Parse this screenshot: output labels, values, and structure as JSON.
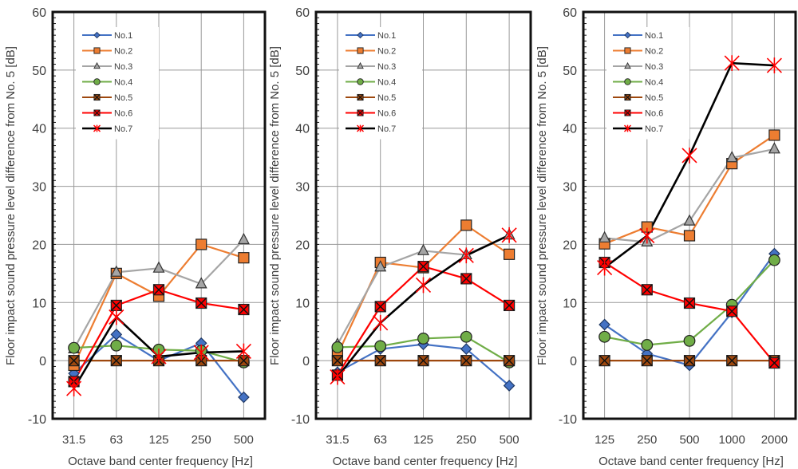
{
  "chart_data": [
    {
      "type": "line",
      "title": "",
      "xlabel": "Octave band center frequency [Hz]",
      "ylabel": "Floor impact sound pressure level difference from No. 5 [dB]",
      "ylim": [
        -10,
        60
      ],
      "yticks": [
        "60",
        "50",
        "40",
        "30",
        "20",
        "10",
        "0",
        "-10"
      ],
      "ytick_values": [
        60,
        50,
        40,
        30,
        20,
        10,
        0,
        -10
      ],
      "categories": [
        "31.5",
        "63",
        "125",
        "250",
        "500"
      ],
      "grid": true,
      "legend_position": "top-left",
      "series": [
        {
          "name": "No.1",
          "values": [
            -2.2,
            4.5,
            0.0,
            3.0,
            -6.3
          ]
        },
        {
          "name": "No.2",
          "values": [
            -0.8,
            15.0,
            11.1,
            20.0,
            17.7
          ]
        },
        {
          "name": "No.3",
          "values": [
            2.0,
            15.2,
            15.9,
            13.2,
            20.8
          ]
        },
        {
          "name": "No.4",
          "values": [
            2.2,
            2.6,
            1.9,
            1.7,
            -0.3
          ]
        },
        {
          "name": "No.5",
          "values": [
            0,
            0,
            0,
            0,
            0
          ]
        },
        {
          "name": "No.6",
          "values": [
            -3.6,
            9.5,
            12.2,
            9.9,
            8.8
          ]
        },
        {
          "name": "No.7",
          "values": [
            -4.8,
            7.5,
            0.7,
            1.4,
            1.6
          ]
        }
      ]
    },
    {
      "type": "line",
      "title": "",
      "xlabel": "Octave band center frequency [Hz]",
      "ylabel": "Floor impact sound pressure level difference from No. 5 [dB]",
      "ylim": [
        -10,
        60
      ],
      "yticks": [
        "60",
        "50",
        "40",
        "30",
        "20",
        "10",
        "0",
        "-10"
      ],
      "ytick_values": [
        60,
        50,
        40,
        30,
        20,
        10,
        0,
        -10
      ],
      "categories": [
        "31.5",
        "63",
        "125",
        "250",
        "500"
      ],
      "grid": true,
      "legend_position": "top-left",
      "series": [
        {
          "name": "No.1",
          "values": [
            -2.0,
            2.0,
            2.8,
            2.0,
            -4.3
          ]
        },
        {
          "name": "No.2",
          "values": [
            1.0,
            16.9,
            16.0,
            23.3,
            18.3
          ]
        },
        {
          "name": "No.3",
          "values": [
            2.8,
            16.1,
            18.9,
            18.2,
            21.6
          ]
        },
        {
          "name": "No.4",
          "values": [
            2.3,
            2.5,
            3.8,
            4.1,
            -0.3
          ]
        },
        {
          "name": "No.5",
          "values": [
            0,
            0,
            0,
            0,
            0
          ]
        },
        {
          "name": "No.6",
          "values": [
            -2.5,
            9.3,
            16.2,
            14.1,
            9.5
          ]
        },
        {
          "name": "No.7",
          "values": [
            -2.8,
            6.5,
            13.0,
            18.1,
            21.6
          ]
        }
      ]
    },
    {
      "type": "line",
      "title": "",
      "xlabel": "Octave band center frequency [Hz]",
      "ylabel": "Floor impact sound pressure level difference from No. 5 [dB]",
      "ylim": [
        -10,
        60
      ],
      "yticks": [
        "60",
        "50",
        "40",
        "30",
        "20",
        "10",
        "0",
        "-10"
      ],
      "ytick_values": [
        60,
        50,
        40,
        30,
        20,
        10,
        0,
        -10
      ],
      "categories": [
        "125",
        "250",
        "500",
        "1000",
        "2000"
      ],
      "grid": true,
      "legend_position": "top-left",
      "series": [
        {
          "name": "No.1",
          "values": [
            6.2,
            1.2,
            -0.8,
            8.3,
            18.4
          ]
        },
        {
          "name": "No.2",
          "values": [
            20.1,
            23.0,
            21.5,
            33.9,
            38.8
          ]
        },
        {
          "name": "No.3",
          "values": [
            21.1,
            20.4,
            24.0,
            34.9,
            36.4
          ]
        },
        {
          "name": "No.4",
          "values": [
            4.1,
            2.7,
            3.4,
            9.6,
            17.3
          ]
        },
        {
          "name": "No.5",
          "values": [
            0,
            0,
            0,
            0,
            0
          ]
        },
        {
          "name": "No.6",
          "values": [
            16.9,
            12.2,
            9.9,
            8.5,
            -0.4
          ]
        },
        {
          "name": "No.7",
          "values": [
            16.0,
            21.5,
            35.3,
            51.2,
            50.8
          ]
        }
      ]
    }
  ],
  "series_styles": [
    {
      "name": "No.1",
      "line_color": "#4472C4",
      "marker": "diamond",
      "marker_fill": "#4472C4"
    },
    {
      "name": "No.2",
      "line_color": "#ED7D31",
      "marker": "square",
      "marker_fill": "#ED7D31"
    },
    {
      "name": "No.3",
      "line_color": "#A5A5A5",
      "marker": "triangle",
      "marker_fill": "#A5A5A5"
    },
    {
      "name": "No.4",
      "line_color": "#70AD47",
      "marker": "circle",
      "marker_fill": "#70AD47"
    },
    {
      "name": "No.5",
      "line_color": "#9E480E",
      "marker": "square-x",
      "marker_fill": "#9E480E"
    },
    {
      "name": "No.6",
      "line_color": "#FF0000",
      "marker": "square-x",
      "marker_fill": "#FF0000"
    },
    {
      "name": "No.7",
      "line_color": "#000000",
      "marker": "star-x",
      "marker_fill": "#FF0000"
    }
  ]
}
